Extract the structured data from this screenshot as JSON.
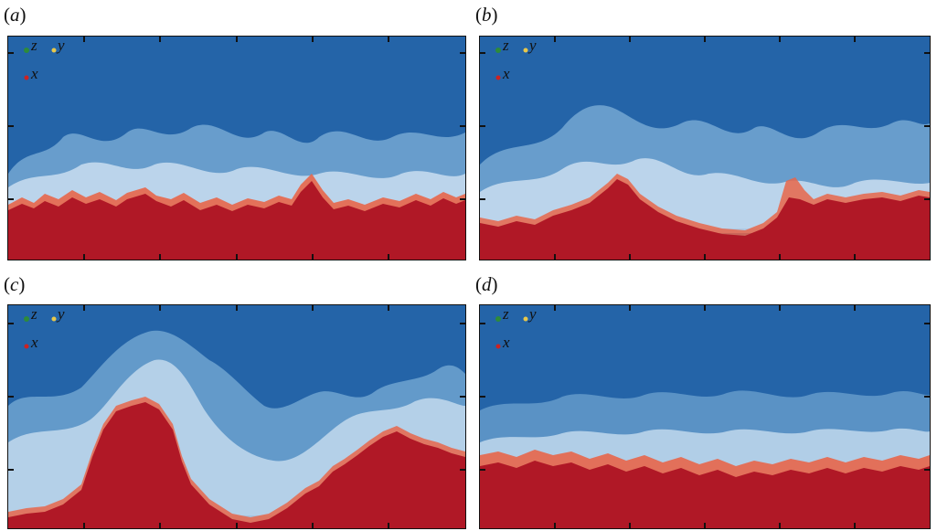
{
  "panels": [
    {
      "id": "a",
      "letter": "a",
      "axes": {
        "z": "z",
        "y": "y",
        "x": "x"
      }
    },
    {
      "id": "b",
      "letter": "b",
      "axes": {
        "z": "z",
        "y": "y",
        "x": "x"
      }
    },
    {
      "id": "c",
      "letter": "c",
      "axes": {
        "z": "z",
        "y": "y",
        "x": "x"
      }
    },
    {
      "id": "d",
      "letter": "d",
      "axes": {
        "z": "z",
        "y": "y",
        "x": "x"
      }
    }
  ],
  "colors": {
    "upper_fluid": "#2464a8",
    "lower_fluid": "#b01826",
    "mixing_light": "#cfe2f2",
    "mixing_mid": "#7fb0d8",
    "mixing_red": "#e8664a",
    "frame": "#111111",
    "z_marker": "#2e8b3a",
    "y_marker": "#e8c84a",
    "x_marker": "#cc2222"
  }
}
